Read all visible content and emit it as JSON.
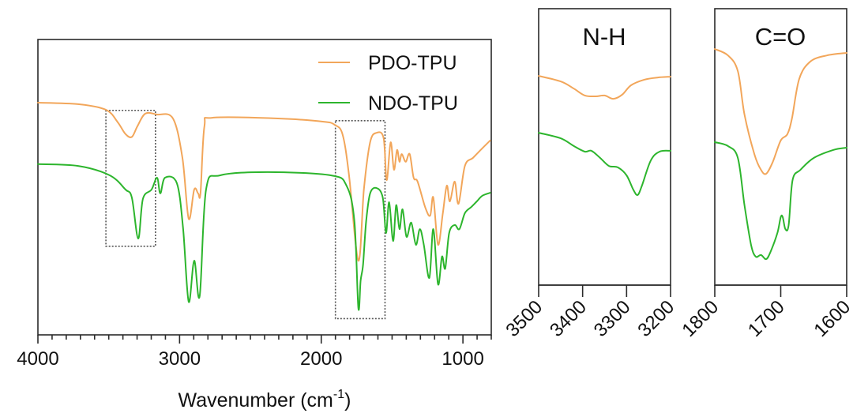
{
  "chart_data": [
    {
      "type": "line",
      "panel": "main",
      "title": "",
      "xlabel": "Wavenumber (cm",
      "xlabel_sup": "-1",
      "xlabel_close": ")",
      "ylabel": "",
      "xlim": [
        4000,
        800
      ],
      "ylim": [
        0,
        100
      ],
      "x_ticks_major": [
        4000,
        3000,
        2000,
        1000
      ],
      "x_tick_labels": [
        "4000",
        "3000",
        "2000",
        "1000"
      ],
      "x_ticks_minor_step": 100,
      "y_ticks": [],
      "grid": false,
      "legend": {
        "placement": "top-right",
        "entries": [
          "PDO-TPU",
          "NDO-TPU"
        ]
      },
      "highlight_regions": [
        {
          "label": "N-H",
          "x_range": [
            3520,
            3170
          ],
          "y_range": [
            30,
            76
          ]
        },
        {
          "label": "C=O",
          "x_range": [
            1900,
            1550
          ],
          "y_range": [
            5.5,
            72.5
          ]
        }
      ],
      "series": [
        {
          "name": "PDO-TPU",
          "color": "#F2A65A",
          "points": [
            [
              4000,
              78.6
            ],
            [
              3716,
              78.1
            ],
            [
              3520,
              76.2
            ],
            [
              3437,
              72
            ],
            [
              3382,
              68
            ],
            [
              3337,
              67
            ],
            [
              3298,
              70.6
            ],
            [
              3242,
              74.9
            ],
            [
              3159,
              74.6
            ],
            [
              3047,
              73.3
            ],
            [
              2980,
              59.9
            ],
            [
              2936,
              39.3
            ],
            [
              2897,
              49.2
            ],
            [
              2869,
              47.9
            ],
            [
              2852,
              48.1
            ],
            [
              2825,
              70.6
            ],
            [
              2769,
              73.5
            ],
            [
              2323,
              73.3
            ],
            [
              1989,
              72.2
            ],
            [
              1905,
              71.1
            ],
            [
              1850,
              67.9
            ],
            [
              1805,
              54.5
            ],
            [
              1738,
              25.1
            ],
            [
              1699,
              49.2
            ],
            [
              1655,
              65.2
            ],
            [
              1610,
              68.4
            ],
            [
              1560,
              66.6
            ],
            [
              1538,
              52.4
            ],
            [
              1510,
              65.2
            ],
            [
              1487,
              55.9
            ],
            [
              1465,
              62.6
            ],
            [
              1448,
              58.6
            ],
            [
              1432,
              61.2
            ],
            [
              1404,
              58.6
            ],
            [
              1376,
              61.2
            ],
            [
              1348,
              53.2
            ],
            [
              1320,
              51.9
            ],
            [
              1265,
              43
            ],
            [
              1231,
              40.4
            ],
            [
              1209,
              46.5
            ],
            [
              1176,
              30.5
            ],
            [
              1142,
              41.2
            ],
            [
              1114,
              50.5
            ],
            [
              1092,
              45.2
            ],
            [
              1058,
              51.9
            ],
            [
              1031,
              44.4
            ],
            [
              986,
              57.2
            ],
            [
              930,
              59.9
            ],
            [
              875,
              62.6
            ],
            [
              808,
              65.8
            ]
          ]
        },
        {
          "name": "NDO-TPU",
          "color": "#2DB52D",
          "points": [
            [
              4000,
              57.8
            ],
            [
              3716,
              57.2
            ],
            [
              3493,
              54
            ],
            [
              3382,
              49.2
            ],
            [
              3337,
              46.5
            ],
            [
              3292,
              32.6
            ],
            [
              3259,
              46
            ],
            [
              3198,
              49.2
            ],
            [
              3159,
              53.2
            ],
            [
              3136,
              47.9
            ],
            [
              3103,
              53.2
            ],
            [
              3019,
              51.3
            ],
            [
              2975,
              35.8
            ],
            [
              2936,
              11.2
            ],
            [
              2897,
              25.1
            ],
            [
              2858,
              13.1
            ],
            [
              2813,
              49.2
            ],
            [
              2713,
              54
            ],
            [
              2379,
              55.1
            ],
            [
              1933,
              54
            ],
            [
              1822,
              50.5
            ],
            [
              1766,
              38.5
            ],
            [
              1738,
              9.1
            ],
            [
              1722,
              18.4
            ],
            [
              1705,
              23.8
            ],
            [
              1683,
              38.5
            ],
            [
              1655,
              47.9
            ],
            [
              1610,
              49.7
            ],
            [
              1566,
              46.5
            ],
            [
              1543,
              34.5
            ],
            [
              1521,
              44.9
            ],
            [
              1493,
              31.8
            ],
            [
              1471,
              43.9
            ],
            [
              1448,
              35.8
            ],
            [
              1426,
              42.5
            ],
            [
              1398,
              33.2
            ],
            [
              1365,
              38
            ],
            [
              1332,
              30.5
            ],
            [
              1304,
              35.8
            ],
            [
              1276,
              30.5
            ],
            [
              1237,
              19.3
            ],
            [
              1209,
              35.8
            ],
            [
              1176,
              17.1
            ],
            [
              1148,
              26.5
            ],
            [
              1125,
              22.5
            ],
            [
              1097,
              34.5
            ],
            [
              1058,
              37.2
            ],
            [
              1025,
              35.8
            ],
            [
              986,
              41.2
            ],
            [
              941,
              43.3
            ],
            [
              902,
              45.2
            ],
            [
              863,
              47.1
            ],
            [
              808,
              48.1
            ]
          ]
        }
      ]
    },
    {
      "type": "line",
      "panel": "nh",
      "title": "N-H",
      "xlim": [
        3500,
        3200
      ],
      "ylim": [
        0,
        100
      ],
      "x_ticks_major": [
        3500,
        3400,
        3300,
        3200
      ],
      "x_tick_labels": [
        "3500",
        "3400",
        "3300",
        "3200"
      ],
      "grid": false,
      "series": [
        {
          "name": "PDO-TPU",
          "color": "#F2A65A",
          "points": [
            [
              3500,
              75.7
            ],
            [
              3450,
              73.7
            ],
            [
              3420,
              71.1
            ],
            [
              3395,
              68.6
            ],
            [
              3370,
              68.3
            ],
            [
              3350,
              68.6
            ],
            [
              3330,
              67.4
            ],
            [
              3310,
              68.9
            ],
            [
              3290,
              72.3
            ],
            [
              3260,
              74.3
            ],
            [
              3230,
              75.1
            ],
            [
              3200,
              75.4
            ]
          ]
        },
        {
          "name": "NDO-TPU",
          "color": "#2DB52D",
          "points": [
            [
              3500,
              55.1
            ],
            [
              3450,
              53.1
            ],
            [
              3420,
              50.3
            ],
            [
              3395,
              48.3
            ],
            [
              3380,
              48.6
            ],
            [
              3360,
              46
            ],
            [
              3340,
              43.1
            ],
            [
              3320,
              42.6
            ],
            [
              3300,
              39.7
            ],
            [
              3285,
              34.6
            ],
            [
              3275,
              32.6
            ],
            [
              3265,
              36
            ],
            [
              3245,
              45.1
            ],
            [
              3225,
              48.3
            ],
            [
              3200,
              48.6
            ]
          ]
        }
      ]
    },
    {
      "type": "line",
      "panel": "co",
      "title": "C=O",
      "xlim": [
        1800,
        1600
      ],
      "ylim": [
        0,
        100
      ],
      "x_ticks_major": [
        1800,
        1700,
        1600
      ],
      "x_tick_labels": [
        "1800",
        "1700",
        "1600"
      ],
      "grid": false,
      "series": [
        {
          "name": "PDO-TPU",
          "color": "#F2A65A",
          "points": [
            [
              1800,
              85.4
            ],
            [
              1780,
              83.1
            ],
            [
              1765,
              77.4
            ],
            [
              1755,
              61.7
            ],
            [
              1740,
              47.4
            ],
            [
              1730,
              41.7
            ],
            [
              1722,
              40.3
            ],
            [
              1712,
              44.6
            ],
            [
              1700,
              52.3
            ],
            [
              1690,
              54.6
            ],
            [
              1683,
              60.3
            ],
            [
              1672,
              74.6
            ],
            [
              1655,
              80.9
            ],
            [
              1630,
              83.1
            ],
            [
              1600,
              84
            ]
          ]
        },
        {
          "name": "NDO-TPU",
          "color": "#2DB52D",
          "points": [
            [
              1800,
              51.7
            ],
            [
              1780,
              50.3
            ],
            [
              1765,
              46
            ],
            [
              1755,
              28.9
            ],
            [
              1745,
              14.6
            ],
            [
              1738,
              10.3
            ],
            [
              1730,
              10.9
            ],
            [
              1722,
              9.4
            ],
            [
              1715,
              12.3
            ],
            [
              1705,
              18.9
            ],
            [
              1700,
              24.6
            ],
            [
              1697,
              24.6
            ],
            [
              1693,
              20.3
            ],
            [
              1688,
              21.7
            ],
            [
              1682,
              38
            ],
            [
              1670,
              41.7
            ],
            [
              1650,
              46
            ],
            [
              1620,
              48.9
            ],
            [
              1600,
              49.7
            ]
          ]
        }
      ]
    }
  ]
}
